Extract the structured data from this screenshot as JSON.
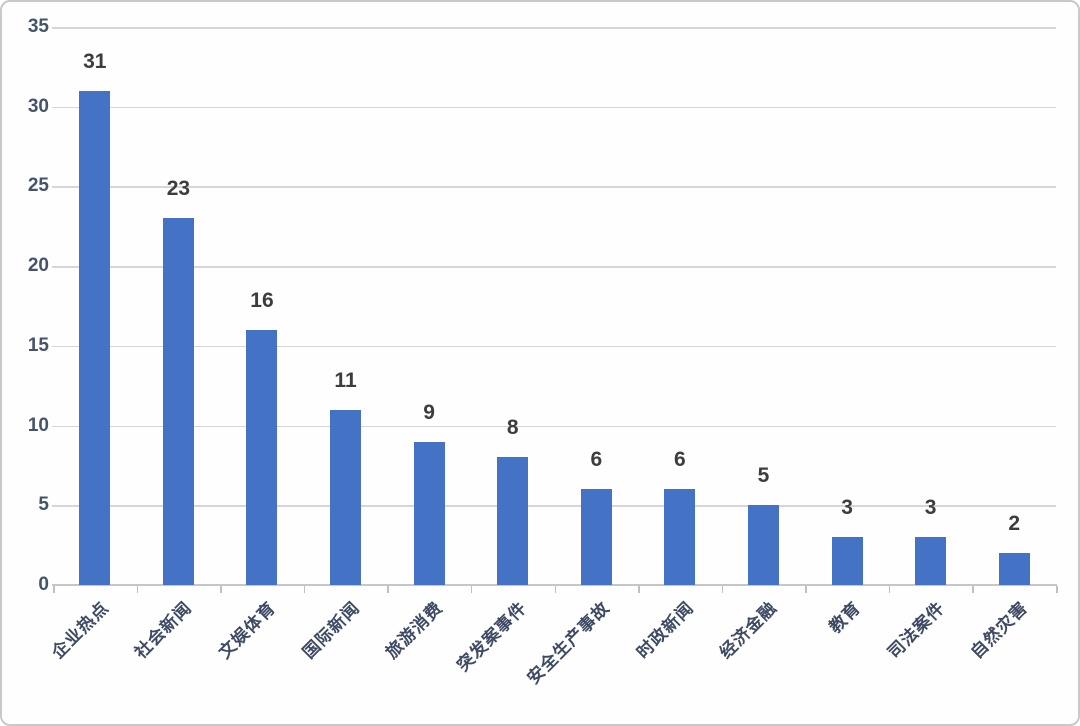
{
  "chart_data": {
    "type": "bar",
    "title": "",
    "xlabel": "",
    "ylabel": "",
    "categories": [
      "企业热点",
      "社会新闻",
      "文娱体育",
      "国际新闻",
      "旅游消费",
      "突发案事件",
      "安全生产事故",
      "时政新闻",
      "经济金融",
      "教育",
      "司法案件",
      "自然灾害"
    ],
    "values": [
      31,
      23,
      16,
      11,
      9,
      8,
      6,
      6,
      5,
      3,
      3,
      2
    ],
    "data_labels": [
      "31",
      "23",
      "16",
      "11",
      "9",
      "8",
      "6",
      "6",
      "5",
      "3",
      "3",
      "2"
    ],
    "ylim": [
      0,
      35
    ],
    "yticks": [
      0,
      5,
      10,
      15,
      20,
      25,
      30,
      35
    ],
    "grid": true,
    "legend": "none",
    "category_label_rotation_deg": -45,
    "colors": {
      "bar": "#4472c4",
      "gridline": "#d6d6d6",
      "axis_line": "#c6c6c6",
      "y_tick_label": "#44546a",
      "data_label": "#3d3d3d",
      "category_label": "#3e4a63",
      "frame_border": "#c9c9c9",
      "background": "#fefefe"
    }
  }
}
